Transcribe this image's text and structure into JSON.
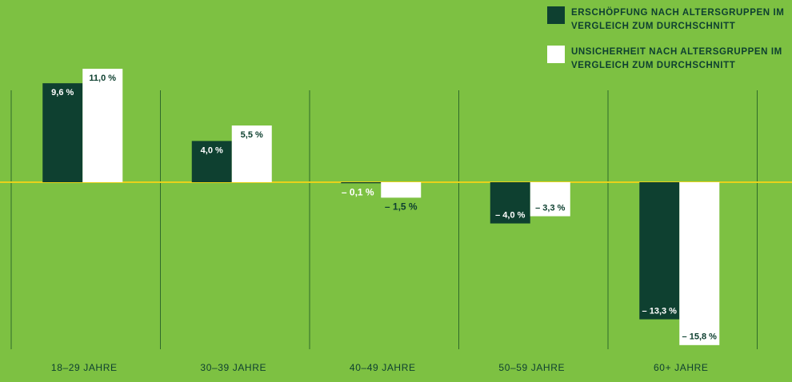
{
  "chart_data": {
    "type": "bar",
    "categories": [
      "18–29 JAHRE",
      "30–39 JAHRE",
      "40–49 JAHRE",
      "50–59 JAHRE",
      "60+ JAHRE"
    ],
    "series": [
      {
        "name": "ERSCHÖPFUNG NACH ALTERSGRUPPEN IM VERGLEICH ZUM DURCHSCHNITT",
        "color": "#0e4030",
        "values": [
          9.6,
          4.0,
          -0.1,
          -4.0,
          -13.3
        ],
        "value_labels": [
          "9,6 %",
          "4,0 %",
          "– 0,1 %",
          "– 4,0 %",
          "– 13,3 %"
        ]
      },
      {
        "name": "UNSICHERHEIT NACH ALTERSGRUPPEN IM VERGLEICH ZUM DURCHSCHNITT",
        "color": "#ffffff",
        "values": [
          11.0,
          5.5,
          -1.5,
          -3.3,
          -15.8
        ],
        "value_labels": [
          "11,0 %",
          "5,5 %",
          "– 1,5 %",
          "– 3,3 %",
          "– 15,8 %"
        ]
      }
    ],
    "background": "#7dc142",
    "zero_line_color": "#e8d21a"
  }
}
